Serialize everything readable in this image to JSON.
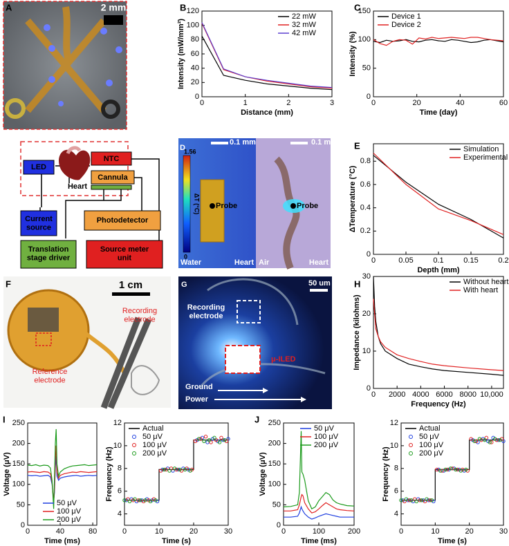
{
  "chart_data": [
    {
      "type": "line",
      "xlabel": "Distance (mm)",
      "ylabel": "Intensity (mW/mm²)",
      "x": [
        0,
        0.5,
        1,
        1.5,
        2,
        2.5,
        3
      ],
      "series": [
        {
          "name": "22 mW",
          "color": "#000000",
          "values": [
            85,
            30,
            23,
            18,
            15,
            12,
            10
          ]
        },
        {
          "name": "32 mW",
          "color": "#e02020",
          "values": [
            103,
            38,
            28,
            22,
            18,
            14,
            12
          ]
        },
        {
          "name": "42 mW",
          "color": "#5a3fd0",
          "values": [
            104,
            39,
            28,
            23,
            19,
            15,
            13
          ]
        }
      ],
      "xlim": [
        0,
        3
      ],
      "xticks": [
        0,
        1,
        2,
        3
      ],
      "ylim": [
        0,
        120
      ],
      "yticks": [
        0,
        20,
        40,
        60,
        80,
        100,
        120
      ],
      "legend": "upper right"
    },
    {
      "type": "line",
      "xlabel": "Time (day)",
      "ylabel": "Intensity (%)",
      "x": [
        0,
        3,
        6,
        9,
        12,
        15,
        18,
        21,
        24,
        27,
        30,
        33,
        36,
        39,
        42,
        45,
        48,
        51,
        54,
        57,
        60
      ],
      "series": [
        {
          "name": "Device 1",
          "color": "#000000",
          "values": [
            97,
            95,
            99,
            97,
            98,
            100,
            97,
            96,
            99,
            100,
            98,
            97,
            100,
            99,
            97,
            95,
            96,
            99,
            100,
            98,
            96
          ]
        },
        {
          "name": "Device 2",
          "color": "#e02020",
          "values": [
            100,
            93,
            90,
            97,
            100,
            99,
            92,
            103,
            101,
            104,
            102,
            103,
            104,
            103,
            102,
            104,
            104,
            102,
            100,
            99,
            98
          ]
        }
      ],
      "xlim": [
        0,
        60
      ],
      "xticks": [
        0,
        20,
        40,
        60
      ],
      "ylim": [
        0,
        150
      ],
      "yticks": [
        0,
        50,
        100,
        150
      ],
      "legend": "upper left"
    },
    {
      "type": "line",
      "xlabel": "Depth (mm)",
      "ylabel": "ΔTemperature (°C)",
      "x": [
        0,
        0.05,
        0.1,
        0.15,
        0.2
      ],
      "series": [
        {
          "name": "Simulation",
          "color": "#000000",
          "values": [
            0.85,
            0.62,
            0.43,
            0.3,
            0.14
          ]
        },
        {
          "name": "Experimental",
          "color": "#e02020",
          "values": [
            0.87,
            0.6,
            0.39,
            0.29,
            0.17
          ]
        }
      ],
      "xlim": [
        0,
        0.2
      ],
      "xticks": [
        0,
        0.05,
        0.1,
        0.15,
        0.2
      ],
      "ylim": [
        0,
        0.95
      ],
      "yticks": [
        0,
        0.2,
        0.4,
        0.6,
        0.8
      ],
      "legend": "upper right"
    },
    {
      "type": "line",
      "xlabel": "Frequency (Hz)",
      "ylabel": "Impedance (kilohms)",
      "x": [
        0,
        100,
        200,
        400,
        600,
        1000,
        1500,
        2000,
        3000,
        4000,
        5000,
        6000,
        8000,
        10000,
        11000
      ],
      "series": [
        {
          "name": "Without heart",
          "color": "#000000",
          "values": [
            30,
            22,
            18,
            14,
            12,
            10,
            9,
            8,
            6.5,
            5.8,
            5.2,
            4.8,
            4.3,
            3.8,
            3.5
          ]
        },
        {
          "name": "With heart",
          "color": "#e02020",
          "values": [
            24,
            20,
            16,
            14,
            12.5,
            11,
            10,
            9,
            8,
            7.2,
            6.5,
            6.1,
            5.5,
            5,
            4.8
          ]
        }
      ],
      "xlim": [
        0,
        11000
      ],
      "xticks": [
        0,
        2000,
        4000,
        6000,
        8000,
        {
          "value": 10000,
          "label": "10,000"
        }
      ],
      "ylim": [
        0,
        30
      ],
      "yticks": [
        0,
        10,
        20,
        30
      ],
      "legend": "upper right"
    },
    {
      "type": "line",
      "xlabel": "Time (ms)",
      "ylabel": "Voltage (μV)",
      "x": [
        0,
        5,
        10,
        15,
        20,
        25,
        28,
        30,
        32,
        33,
        34,
        35,
        36,
        38,
        40,
        45,
        50,
        55,
        60,
        65,
        70,
        75,
        80,
        85
      ],
      "series": [
        {
          "name": "50 μV",
          "color": "#1f3fe0",
          "values": [
            122,
            121,
            122,
            120,
            121,
            122,
            118,
            100,
            60,
            80,
            140,
            170,
            120,
            110,
            115,
            118,
            120,
            121,
            122,
            120,
            121,
            122,
            121,
            122
          ]
        },
        {
          "name": "100 μV",
          "color": "#e02020",
          "values": [
            130,
            131,
            130,
            129,
            131,
            130,
            126,
            105,
            55,
            90,
            160,
            195,
            130,
            115,
            122,
            126,
            128,
            130,
            129,
            131,
            130,
            129,
            130,
            131
          ]
        },
        {
          "name": "200 μV",
          "color": "#1a9a1a",
          "values": [
            147,
            146,
            148,
            145,
            147,
            146,
            140,
            110,
            40,
            120,
            200,
            235,
            150,
            120,
            130,
            138,
            142,
            145,
            146,
            147,
            148,
            146,
            147,
            148
          ]
        }
      ],
      "xlim": [
        0,
        85
      ],
      "xticks": [
        0,
        40,
        80
      ],
      "ylim": [
        0,
        250
      ],
      "yticks": [
        0,
        50,
        100,
        150,
        200,
        250
      ],
      "legend": "lower right"
    },
    {
      "type": "line",
      "xlabel": "Time (s)",
      "ylabel": "Frequency (Hz)",
      "series": [
        {
          "name": "Actual",
          "color": "#000000",
          "x": [
            0,
            10,
            10,
            20,
            20,
            30
          ],
          "values": [
            5.2,
            5.2,
            7.9,
            7.9,
            10.5,
            10.5
          ]
        },
        {
          "name": "50 μV",
          "color": "#1f3fe0",
          "marker": true,
          "x": [
            0.5,
            2,
            3.5,
            5,
            6.5,
            8,
            9.5,
            11,
            12.5,
            14,
            15.5,
            17,
            18.5,
            21,
            22.5,
            24,
            25.5,
            27,
            28.5,
            30
          ],
          "values": [
            5.2,
            5.3,
            5.1,
            5.2,
            5.3,
            5.2,
            5.1,
            7.9,
            8,
            7.8,
            7.9,
            8,
            7.9,
            10.5,
            10.7,
            10.3,
            10.6,
            10.4,
            10.5,
            10.6
          ]
        },
        {
          "name": "100 μV",
          "color": "#e02020",
          "marker": true,
          "x": [
            1,
            2.5,
            4,
            5.5,
            7,
            8.5,
            10.5,
            12,
            13.5,
            15,
            16.5,
            18,
            19.5,
            20.5,
            22,
            23.5,
            25,
            26.5,
            28,
            29.5
          ],
          "values": [
            5.3,
            5.2,
            5.2,
            5.1,
            5.2,
            5.3,
            7.8,
            7.9,
            8,
            7.9,
            7.8,
            8,
            7.9,
            10.4,
            10.6,
            10.8,
            10.3,
            10.5,
            10.7,
            10.4
          ]
        },
        {
          "name": "200 μV",
          "color": "#1a9a1a",
          "marker": true,
          "x": [
            0,
            1.5,
            3,
            4.5,
            6,
            7.5,
            9,
            11.5,
            13,
            14.5,
            16,
            17.5,
            19,
            21.5,
            23,
            24.5,
            26,
            27.5,
            29
          ],
          "values": [
            5.2,
            5.1,
            5.3,
            5.2,
            5.2,
            5.1,
            5.2,
            7.9,
            7.8,
            8,
            7.9,
            7.9,
            7.8,
            10.6,
            10.4,
            10.5,
            10.7,
            10.3,
            10.5
          ]
        }
      ],
      "xlim": [
        0,
        30
      ],
      "xticks": [
        0,
        10,
        20,
        30
      ],
      "ylim": [
        3,
        12
      ],
      "yticks": [
        4,
        6,
        8,
        10,
        12
      ],
      "legend": "upper left"
    },
    {
      "type": "line",
      "xlabel": "Time (ms)",
      "ylabel": "Voltage (μV)",
      "x": [
        0,
        20,
        40,
        45,
        50,
        52,
        55,
        60,
        70,
        80,
        90,
        100,
        110,
        120,
        130,
        140,
        150,
        160,
        180,
        200
      ],
      "series": [
        {
          "name": "50 μV",
          "color": "#1f3fe0",
          "values": [
            20,
            20,
            22,
            30,
            45,
            40,
            35,
            28,
            20,
            15,
            18,
            22,
            25,
            28,
            26,
            24,
            22,
            20,
            20,
            20
          ]
        },
        {
          "name": "100 μV",
          "color": "#e02020",
          "values": [
            35,
            35,
            38,
            50,
            70,
            75,
            72,
            55,
            40,
            30,
            33,
            40,
            48,
            55,
            50,
            45,
            40,
            38,
            36,
            35
          ]
        },
        {
          "name": "200 μV",
          "color": "#1a9a1a",
          "values": [
            45,
            46,
            50,
            80,
            230,
            130,
            125,
            110,
            60,
            40,
            45,
            60,
            70,
            80,
            75,
            62,
            55,
            52,
            48,
            47
          ]
        }
      ],
      "xlim": [
        0,
        200
      ],
      "xticks": [
        0,
        100,
        200
      ],
      "ylim": [
        0,
        250
      ],
      "yticks": [
        0,
        50,
        100,
        150,
        200,
        250
      ],
      "legend": "upper right"
    },
    {
      "type": "line",
      "xlabel": "Time (s)",
      "ylabel": "Frequency (Hz)",
      "series": [
        {
          "name": "Actual",
          "color": "#000000",
          "x": [
            0,
            10,
            10,
            20,
            20,
            30
          ],
          "values": [
            5.2,
            5.2,
            7.9,
            7.9,
            10.5,
            10.5
          ]
        },
        {
          "name": "50 μV",
          "color": "#1f3fe0",
          "marker": true,
          "x": [
            0.5,
            2,
            3.5,
            5,
            6.5,
            8,
            9.5,
            11,
            12.5,
            14,
            15.5,
            17,
            18.5,
            21,
            22.5,
            24,
            25.5,
            27,
            28.5,
            30
          ],
          "values": [
            5.2,
            5.2,
            5.1,
            5.3,
            5.2,
            5.2,
            5.1,
            7.9,
            7.8,
            7.9,
            8,
            7.9,
            7.8,
            10.5,
            10.3,
            10.6,
            10.4,
            10.7,
            10.5,
            10.4
          ]
        },
        {
          "name": "100 μV",
          "color": "#e02020",
          "marker": true,
          "x": [
            1,
            2.5,
            4,
            5.5,
            7,
            8.5,
            10.5,
            12,
            13.5,
            15,
            16.5,
            18,
            19.5,
            20.5,
            22,
            23.5,
            25,
            26.5,
            28,
            29.5
          ],
          "values": [
            5.1,
            5.2,
            5.3,
            5.2,
            5.1,
            5.2,
            7.9,
            7.8,
            7.9,
            8,
            7.9,
            7.9,
            7.8,
            10.6,
            10.4,
            10.5,
            10.7,
            10.3,
            10.5,
            10.6
          ]
        },
        {
          "name": "200 μV",
          "color": "#1a9a1a",
          "marker": true,
          "x": [
            0,
            1.5,
            3,
            4.5,
            6,
            7.5,
            9,
            11.5,
            13,
            14.5,
            16,
            17.5,
            19,
            21.5,
            23,
            24.5,
            26,
            27.5,
            29
          ],
          "values": [
            5.2,
            5.3,
            5.2,
            5.1,
            5.2,
            5.3,
            5.2,
            7.8,
            7.9,
            8,
            7.9,
            7.8,
            7.9,
            10.4,
            10.6,
            10.5,
            10.3,
            10.6,
            10.5
          ]
        }
      ],
      "xlim": [
        0,
        30
      ],
      "xticks": [
        0,
        10,
        20,
        30
      ],
      "ylim": [
        3,
        12
      ],
      "yticks": [
        4,
        6,
        8,
        10,
        12
      ],
      "legend": "upper left"
    }
  ],
  "figure": {
    "labels": [
      "A",
      "B",
      "C",
      "D",
      "E",
      "F",
      "G",
      "H",
      "I",
      "J"
    ],
    "A": {
      "scale": "2 mm"
    },
    "diagram": {
      "led": "LED",
      "heart": "Heart",
      "ntc": "NTC",
      "cannula": "Cannula",
      "current_source": "Current source",
      "photodetector": "Photodetector",
      "stage": "Translation stage driver",
      "smu": "Source meter unit"
    },
    "D": {
      "scale_left": "0.1 mm",
      "scale_right": "0.1 mm",
      "colorbar_max": 1.56,
      "colorbar_min": 0,
      "colorbar_label": "ΔT (°C)",
      "probe_left": "Probe",
      "probe_right": "Probe",
      "water": "Water",
      "heart_left": "Heart",
      "air": "Air",
      "heart_right": "Heart"
    },
    "F": {
      "scale": "1 cm",
      "recording": "Recording electrode",
      "reference": "Reference electrode"
    },
    "G": {
      "scale": "50 um",
      "recording": "Recording electrode",
      "iled": "μ-ILED",
      "ground": "Ground",
      "power": "Power"
    }
  }
}
